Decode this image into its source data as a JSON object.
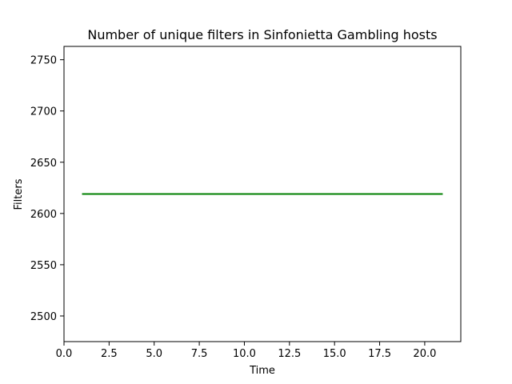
{
  "chart_data": {
    "type": "line",
    "title": "Number of unique filters in Sinfonietta Gambling hosts",
    "xlabel": "Time",
    "ylabel": "Filters",
    "xlim": [
      0,
      22
    ],
    "ylim": [
      2475,
      2763
    ],
    "x_ticks": [
      0,
      2.5,
      5,
      7.5,
      10,
      12.5,
      15,
      17.5,
      20
    ],
    "x_tick_labels": [
      "0.0",
      "2.5",
      "5.0",
      "7.5",
      "10.0",
      "12.5",
      "15.0",
      "17.5",
      "20.0"
    ],
    "y_ticks": [
      2500,
      2550,
      2600,
      2650,
      2700,
      2750
    ],
    "y_tick_labels": [
      "2500",
      "2550",
      "2600",
      "2650",
      "2700",
      "2750"
    ],
    "grid": false,
    "series": [
      {
        "color": "#008000",
        "x": [
          1,
          2,
          3,
          4,
          5,
          6,
          7,
          8,
          9,
          10,
          11,
          12,
          13,
          14,
          15,
          16,
          17,
          18,
          19,
          20,
          21
        ],
        "y": [
          2619,
          2619,
          2619,
          2619,
          2619,
          2619,
          2619,
          2619,
          2619,
          2619,
          2619,
          2619,
          2619,
          2619,
          2619,
          2619,
          2619,
          2619,
          2619,
          2619,
          2619
        ]
      }
    ]
  }
}
